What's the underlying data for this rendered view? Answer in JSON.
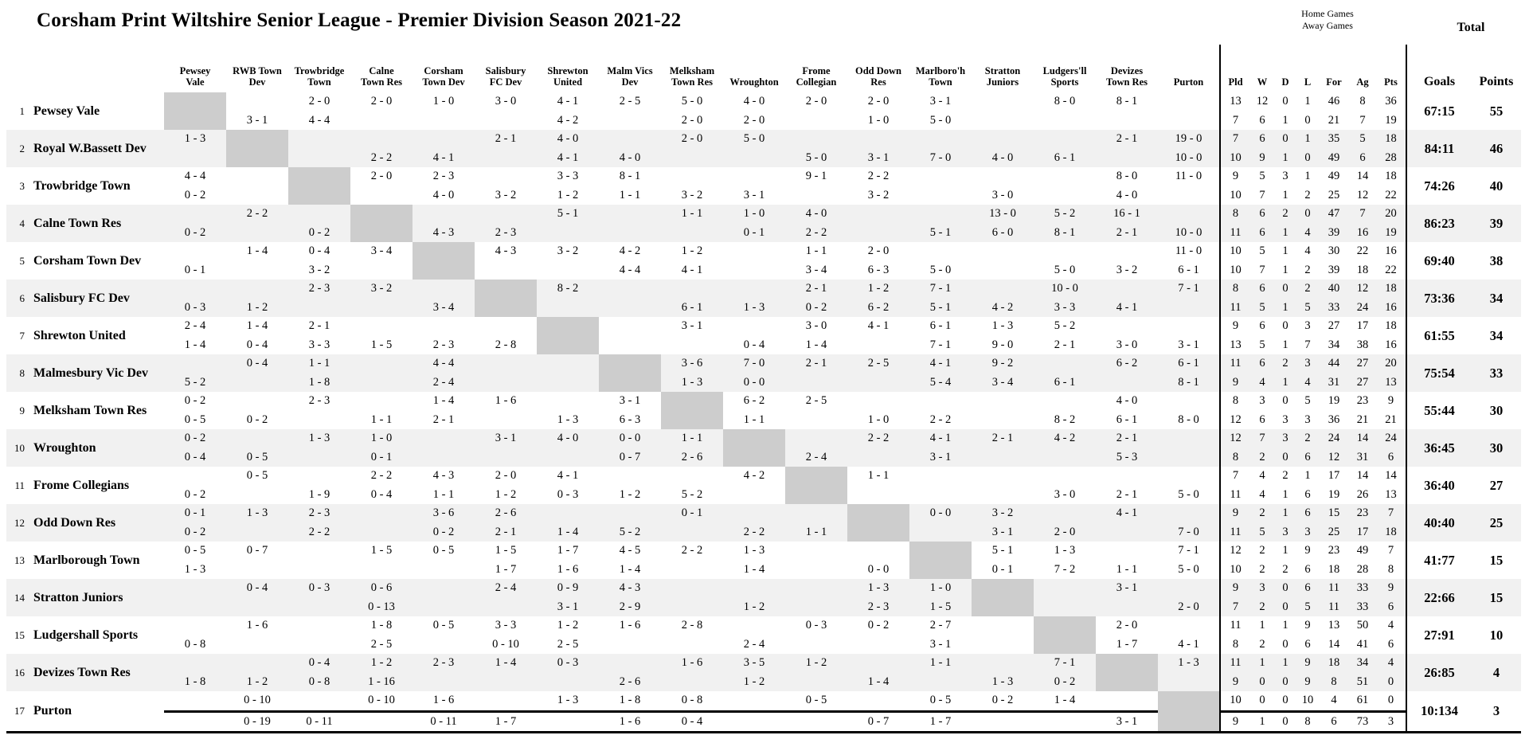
{
  "title": "Corsham Print Wiltshire Senior League - Premier Division Season 2021-22",
  "header": {
    "home_note": "Home Games",
    "away_note": "Away Games",
    "total_label": "Total",
    "stats_columns": [
      "Pld",
      "W",
      "D",
      "L",
      "For",
      "Ag",
      "Pts"
    ],
    "goals_label": "Goals",
    "points_label": "Points",
    "opponents": [
      "Pewsey\nVale",
      "RWB Town\nDev",
      "Trowbridge\nTown",
      "Calne\nTown Res",
      "Corsham\nTown Dev",
      "Salisbury\nFC Dev",
      "Shrewton\nUnited",
      "Malm Vics\nDev",
      "Melksham\nTown Res",
      "Wroughton",
      "Frome\nCollegian",
      "Odd Down\nRes",
      "Marlboro'h\nTown",
      "Stratton\nJuniors",
      "Ludgers'll\nSports",
      "Devizes\nTown Res",
      "Purton"
    ]
  },
  "colors": {
    "diagonal": "#cdcdcd",
    "row_alt": "#f1f1f1",
    "rule": "#000000"
  },
  "teams": [
    {
      "rank": 1,
      "name": "Pewsey Vale",
      "home_results": [
        null,
        "",
        "2 - 0",
        "2 - 0",
        "1 - 0",
        "3 - 0",
        "4 - 1",
        "2 - 5",
        "5 - 0",
        "4 - 0",
        "2 - 0",
        "2 - 0",
        "3 - 1",
        "",
        "8 - 0",
        "8 - 1",
        ""
      ],
      "away_results": [
        null,
        "3 - 1",
        "4 - 4",
        "",
        "",
        "",
        "4 - 2",
        "",
        "2 - 0",
        "2 - 0",
        "",
        "1 - 0",
        "5 - 0",
        "",
        "",
        "",
        ""
      ],
      "home_stats": [
        13,
        12,
        0,
        1,
        46,
        8,
        36
      ],
      "away_stats": [
        7,
        6,
        1,
        0,
        21,
        7,
        19
      ],
      "goals": "67:15",
      "points": 55
    },
    {
      "rank": 2,
      "name": "Royal W.Bassett Dev",
      "home_results": [
        "1 - 3",
        null,
        "",
        "",
        "",
        "2 - 1",
        "4 - 0",
        "",
        "2 - 0",
        "5 - 0",
        "",
        "",
        "",
        "",
        "",
        "2 - 1",
        "19 - 0"
      ],
      "away_results": [
        "",
        null,
        "",
        "2 - 2",
        "4 - 1",
        "",
        "4 - 1",
        "4 - 0",
        "",
        "",
        "5 - 0",
        "3 - 1",
        "7 - 0",
        "4 - 0",
        "6 - 1",
        "",
        "10 - 0"
      ],
      "home_stats": [
        7,
        6,
        0,
        1,
        35,
        5,
        18
      ],
      "away_stats": [
        10,
        9,
        1,
        0,
        49,
        6,
        28
      ],
      "goals": "84:11",
      "points": 46
    },
    {
      "rank": 3,
      "name": "Trowbridge Town",
      "home_results": [
        "4 - 4",
        "",
        null,
        "2 - 0",
        "2 - 3",
        "",
        "3 - 3",
        "8 - 1",
        "",
        "",
        "9 - 1",
        "2 - 2",
        "",
        "",
        "",
        "8 - 0",
        "11 - 0"
      ],
      "away_results": [
        "0 - 2",
        "",
        null,
        "",
        "4 - 0",
        "3 - 2",
        "1 - 2",
        "1 - 1",
        "3 - 2",
        "3 - 1",
        "",
        "3 - 2",
        "",
        "3 - 0",
        "",
        "4 - 0",
        ""
      ],
      "home_stats": [
        9,
        5,
        3,
        1,
        49,
        14,
        18
      ],
      "away_stats": [
        10,
        7,
        1,
        2,
        25,
        12,
        22
      ],
      "goals": "74:26",
      "points": 40
    },
    {
      "rank": 4,
      "name": "Calne Town Res",
      "home_results": [
        "",
        "2 - 2",
        "",
        null,
        "",
        "",
        "5 - 1",
        "",
        "1 - 1",
        "1 - 0",
        "4 - 0",
        "",
        "",
        "13 - 0",
        "5 - 2",
        "16 - 1",
        ""
      ],
      "away_results": [
        "0 - 2",
        "",
        "0 - 2",
        null,
        "4 - 3",
        "2 - 3",
        "",
        "",
        "",
        "0 - 1",
        "2 - 2",
        "",
        "5 - 1",
        "6 - 0",
        "8 - 1",
        "2 - 1",
        "10 - 0"
      ],
      "home_stats": [
        8,
        6,
        2,
        0,
        47,
        7,
        20
      ],
      "away_stats": [
        11,
        6,
        1,
        4,
        39,
        16,
        19
      ],
      "goals": "86:23",
      "points": 39
    },
    {
      "rank": 5,
      "name": "Corsham Town Dev",
      "home_results": [
        "",
        "1 - 4",
        "0 - 4",
        "3 - 4",
        null,
        "4 - 3",
        "3 - 2",
        "4 - 2",
        "1 - 2",
        "",
        "1 - 1",
        "2 - 0",
        "",
        "",
        "",
        "",
        "11 - 0"
      ],
      "away_results": [
        "0 - 1",
        "",
        "3 - 2",
        "",
        null,
        "",
        "",
        "4 - 4",
        "4 - 1",
        "",
        "3 - 4",
        "6 - 3",
        "5 - 0",
        "",
        "5 - 0",
        "3 - 2",
        "6 - 1"
      ],
      "home_stats": [
        10,
        5,
        1,
        4,
        30,
        22,
        16
      ],
      "away_stats": [
        10,
        7,
        1,
        2,
        39,
        18,
        22
      ],
      "goals": "69:40",
      "points": 38
    },
    {
      "rank": 6,
      "name": "Salisbury FC Dev",
      "home_results": [
        "",
        "",
        "2 - 3",
        "3 - 2",
        "",
        null,
        "8 - 2",
        "",
        "",
        "",
        "2 - 1",
        "1 - 2",
        "7 - 1",
        "",
        "10 - 0",
        "",
        "7 - 1"
      ],
      "away_results": [
        "0 - 3",
        "1 - 2",
        "",
        "",
        "3 - 4",
        null,
        "",
        "",
        "6 - 1",
        "1 - 3",
        "0 - 2",
        "6 - 2",
        "5 - 1",
        "4 - 2",
        "3 - 3",
        "4 - 1",
        ""
      ],
      "home_stats": [
        8,
        6,
        0,
        2,
        40,
        12,
        18
      ],
      "away_stats": [
        11,
        5,
        1,
        5,
        33,
        24,
        16
      ],
      "goals": "73:36",
      "points": 34
    },
    {
      "rank": 7,
      "name": "Shrewton United",
      "home_results": [
        "2 - 4",
        "1 - 4",
        "2 - 1",
        "",
        "",
        "",
        null,
        "",
        "3 - 1",
        "",
        "3 - 0",
        "4 - 1",
        "6 - 1",
        "1 - 3",
        "5 - 2",
        "",
        ""
      ],
      "away_results": [
        "1 - 4",
        "0 - 4",
        "3 - 3",
        "1 - 5",
        "2 - 3",
        "2 - 8",
        null,
        "",
        "",
        "0 - 4",
        "1 - 4",
        "",
        "7 - 1",
        "9 - 0",
        "2 - 1",
        "3 - 0",
        "3 - 1"
      ],
      "home_stats": [
        9,
        6,
        0,
        3,
        27,
        17,
        18
      ],
      "away_stats": [
        13,
        5,
        1,
        7,
        34,
        38,
        16
      ],
      "goals": "61:55",
      "points": 34
    },
    {
      "rank": 8,
      "name": "Malmesbury Vic Dev",
      "home_results": [
        "",
        "0 - 4",
        "1 - 1",
        "",
        "4 - 4",
        "",
        "",
        null,
        "3 - 6",
        "7 - 0",
        "2 - 1",
        "2 - 5",
        "4 - 1",
        "9 - 2",
        "",
        "6 - 2",
        "6 - 1"
      ],
      "away_results": [
        "5 - 2",
        "",
        "1 - 8",
        "",
        "2 - 4",
        "",
        "",
        null,
        "1 - 3",
        "0 - 0",
        "",
        "",
        "5 - 4",
        "3 - 4",
        "6 - 1",
        "",
        "8 - 1"
      ],
      "home_stats": [
        11,
        6,
        2,
        3,
        44,
        27,
        20
      ],
      "away_stats": [
        9,
        4,
        1,
        4,
        31,
        27,
        13
      ],
      "goals": "75:54",
      "points": 33
    },
    {
      "rank": 9,
      "name": "Melksham Town Res",
      "home_results": [
        "0 - 2",
        "",
        "2 - 3",
        "",
        "1 - 4",
        "1 - 6",
        "",
        "3 - 1",
        null,
        "6 - 2",
        "2 - 5",
        "",
        "",
        "",
        "",
        "4 - 0",
        ""
      ],
      "away_results": [
        "0 - 5",
        "0 - 2",
        "",
        "1 - 1",
        "2 - 1",
        "",
        "1 - 3",
        "6 - 3",
        null,
        "1 - 1",
        "",
        "1 - 0",
        "2 - 2",
        "",
        "8 - 2",
        "6 - 1",
        "8 - 0"
      ],
      "home_stats": [
        8,
        3,
        0,
        5,
        19,
        23,
        9
      ],
      "away_stats": [
        12,
        6,
        3,
        3,
        36,
        21,
        21
      ],
      "goals": "55:44",
      "points": 30
    },
    {
      "rank": 10,
      "name": "Wroughton",
      "home_results": [
        "0 - 2",
        "",
        "1 - 3",
        "1 - 0",
        "",
        "3 - 1",
        "4 - 0",
        "0 - 0",
        "1 - 1",
        null,
        "",
        "2 - 2",
        "4 - 1",
        "2 - 1",
        "4 - 2",
        "2 - 1",
        ""
      ],
      "away_results": [
        "0 - 4",
        "0 - 5",
        "",
        "0 - 1",
        "",
        "",
        "",
        "0 - 7",
        "2 - 6",
        null,
        "2 - 4",
        "",
        "3 - 1",
        "",
        "",
        "5 - 3",
        ""
      ],
      "home_stats": [
        12,
        7,
        3,
        2,
        24,
        14,
        24
      ],
      "away_stats": [
        8,
        2,
        0,
        6,
        12,
        31,
        6
      ],
      "goals": "36:45",
      "points": 30
    },
    {
      "rank": 11,
      "name": "Frome Collegians",
      "home_results": [
        "",
        "0 - 5",
        "",
        "2 - 2",
        "4 - 3",
        "2 - 0",
        "4 - 1",
        "",
        "",
        "4 - 2",
        null,
        "1 - 1",
        "",
        "",
        "",
        "",
        ""
      ],
      "away_results": [
        "0 - 2",
        "",
        "1 - 9",
        "0 - 4",
        "1 - 1",
        "1 - 2",
        "0 - 3",
        "1 - 2",
        "5 - 2",
        "",
        null,
        "",
        "",
        "",
        "3 - 0",
        "2 - 1",
        "5 - 0"
      ],
      "home_stats": [
        7,
        4,
        2,
        1,
        17,
        14,
        14
      ],
      "away_stats": [
        11,
        4,
        1,
        6,
        19,
        26,
        13
      ],
      "goals": "36:40",
      "points": 27
    },
    {
      "rank": 12,
      "name": "Odd Down Res",
      "home_results": [
        "0 - 1",
        "1 - 3",
        "2 - 3",
        "",
        "3 - 6",
        "2 - 6",
        "",
        "",
        "0 - 1",
        "",
        "",
        null,
        "0 - 0",
        "3 - 2",
        "",
        "4 - 1",
        ""
      ],
      "away_results": [
        "0 - 2",
        "",
        "2 - 2",
        "",
        "0 - 2",
        "2 - 1",
        "1 - 4",
        "5 - 2",
        "",
        "2 - 2",
        "1 - 1",
        null,
        "",
        "3 - 1",
        "2 - 0",
        "",
        "7 - 0"
      ],
      "home_stats": [
        9,
        2,
        1,
        6,
        15,
        23,
        7
      ],
      "away_stats": [
        11,
        5,
        3,
        3,
        25,
        17,
        18
      ],
      "goals": "40:40",
      "points": 25
    },
    {
      "rank": 13,
      "name": "Marlborough Town",
      "home_results": [
        "0 - 5",
        "0 - 7",
        "",
        "1 - 5",
        "0 - 5",
        "1 - 5",
        "1 - 7",
        "4 - 5",
        "2 - 2",
        "1 - 3",
        "",
        "",
        null,
        "5 - 1",
        "1 - 3",
        "",
        "7 - 1"
      ],
      "away_results": [
        "1 - 3",
        "",
        "",
        "",
        "",
        "1 - 7",
        "1 - 6",
        "1 - 4",
        "",
        "1 - 4",
        "",
        "0 - 0",
        null,
        "0 - 1",
        "7 - 2",
        "1 - 1",
        "5 - 0"
      ],
      "home_stats": [
        12,
        2,
        1,
        9,
        23,
        49,
        7
      ],
      "away_stats": [
        10,
        2,
        2,
        6,
        18,
        28,
        8
      ],
      "goals": "41:77",
      "points": 15
    },
    {
      "rank": 14,
      "name": "Stratton Juniors",
      "home_results": [
        "",
        "0 - 4",
        "0 - 3",
        "0 - 6",
        "",
        "2 - 4",
        "0 - 9",
        "4 - 3",
        "",
        "",
        "",
        "1 - 3",
        "1 - 0",
        null,
        "",
        "3 - 1",
        ""
      ],
      "away_results": [
        "",
        "",
        "",
        "0 - 13",
        "",
        "",
        "3 - 1",
        "2 - 9",
        "",
        "1 - 2",
        "",
        "2 - 3",
        "1 - 5",
        null,
        "",
        "",
        "2 - 0"
      ],
      "home_stats": [
        9,
        3,
        0,
        6,
        11,
        33,
        9
      ],
      "away_stats": [
        7,
        2,
        0,
        5,
        11,
        33,
        6
      ],
      "goals": "22:66",
      "points": 15
    },
    {
      "rank": 15,
      "name": "Ludgershall Sports",
      "home_results": [
        "",
        "1 - 6",
        "",
        "1 - 8",
        "0 - 5",
        "3 - 3",
        "1 - 2",
        "1 - 6",
        "2 - 8",
        "",
        "0 - 3",
        "0 - 2",
        "2 - 7",
        "",
        null,
        "2 - 0",
        ""
      ],
      "away_results": [
        "0 - 8",
        "",
        "",
        "2 - 5",
        "",
        "0 - 10",
        "2 - 5",
        "",
        "",
        "2 - 4",
        "",
        "",
        "3 - 1",
        "",
        null,
        "1 - 7",
        "4 - 1"
      ],
      "home_stats": [
        11,
        1,
        1,
        9,
        13,
        50,
        4
      ],
      "away_stats": [
        8,
        2,
        0,
        6,
        14,
        41,
        6
      ],
      "goals": "27:91",
      "points": 10
    },
    {
      "rank": 16,
      "name": "Devizes Town Res",
      "home_results": [
        "",
        "",
        "0 - 4",
        "1 - 2",
        "2 - 3",
        "1 - 4",
        "0 - 3",
        "",
        "1 - 6",
        "3 - 5",
        "1 - 2",
        "",
        "1 - 1",
        "",
        "7 - 1",
        null,
        "1 - 3"
      ],
      "away_results": [
        "1 - 8",
        "1 - 2",
        "0 - 8",
        "1 - 16",
        "",
        "",
        "",
        "2 - 6",
        "",
        "1 - 2",
        "",
        "1 - 4",
        "",
        "1 - 3",
        "0 - 2",
        null,
        ""
      ],
      "home_stats": [
        11,
        1,
        1,
        9,
        18,
        34,
        4
      ],
      "away_stats": [
        9,
        0,
        0,
        9,
        8,
        51,
        0
      ],
      "goals": "26:85",
      "points": 4
    },
    {
      "rank": 17,
      "name": "Purton",
      "home_results": [
        "",
        "0 - 10",
        "",
        "0 - 10",
        "1 - 6",
        "",
        "1 - 3",
        "1 - 8",
        "0 - 8",
        "",
        "0 - 5",
        "",
        "0 - 5",
        "0 - 2",
        "1 - 4",
        "",
        null
      ],
      "away_results": [
        "",
        "0 - 19",
        "0 - 11",
        "",
        "0 - 11",
        "1 - 7",
        "",
        "1 - 6",
        "0 - 4",
        "",
        "",
        "0 - 7",
        "1 - 7",
        "",
        "",
        "3 - 1",
        null
      ],
      "home_stats": [
        10,
        0,
        0,
        10,
        4,
        61,
        0
      ],
      "away_stats": [
        9,
        1,
        0,
        8,
        6,
        73,
        3
      ],
      "goals": "10:134",
      "points": 3
    }
  ]
}
